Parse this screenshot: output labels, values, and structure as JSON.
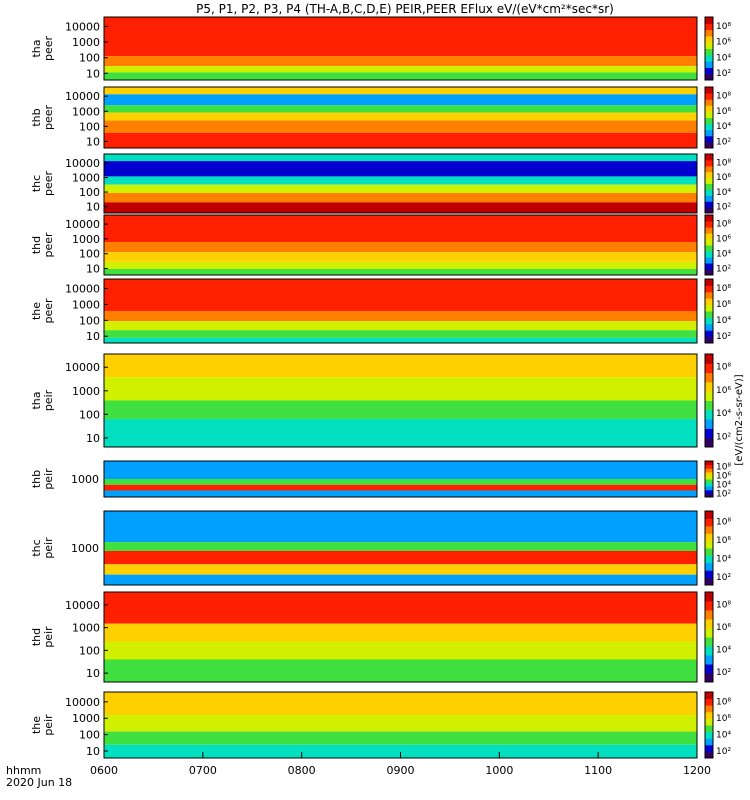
{
  "chart_data": {
    "type": "heatmap",
    "title": "P5, P1, P2, P3, P4 (TH-A,B,C,D,E) PEIR,PEER EFlux eV/(eV*cm²*sec*sr)",
    "xlabel_time": "hhmm",
    "xlabel_date": "2020 Jun 18",
    "x_ticks": [
      "0600",
      "0700",
      "0800",
      "0900",
      "1000",
      "1100",
      "1200"
    ],
    "x_range": [
      "0600",
      "1200"
    ],
    "y_scale": "log",
    "colorbar_scale": "log",
    "colorbar_label": "[eV/(cm2-s-sr-eV)]",
    "colorbar_ticks": [
      "10²",
      "10⁴",
      "10⁶",
      "10⁸"
    ],
    "colormap": [
      "#300060",
      "#0000d0",
      "#00a0ff",
      "#00e0c0",
      "#40e040",
      "#d0f000",
      "#ffd000",
      "#ff8000",
      "#ff2000",
      "#c00000"
    ],
    "panels": [
      {
        "probe": "tha",
        "species": "peer",
        "y_ticks": [
          "10",
          "100",
          "1000",
          "10000"
        ]
      },
      {
        "probe": "thb",
        "species": "peer",
        "y_ticks": [
          "10",
          "100",
          "1000",
          "10000"
        ]
      },
      {
        "probe": "thc",
        "species": "peer",
        "y_ticks": [
          "10",
          "100",
          "1000",
          "10000"
        ]
      },
      {
        "probe": "thd",
        "species": "peer",
        "y_ticks": [
          "10",
          "100",
          "1000",
          "10000"
        ]
      },
      {
        "probe": "the",
        "species": "peer",
        "y_ticks": [
          "10",
          "100",
          "1000",
          "10000"
        ]
      },
      {
        "probe": "tha",
        "species": "peir",
        "y_ticks": [
          "10",
          "100",
          "1000",
          "10000"
        ]
      },
      {
        "probe": "thb",
        "species": "peir",
        "y_ticks": [
          "1000"
        ]
      },
      {
        "probe": "thc",
        "species": "peir",
        "y_ticks": [
          "1000"
        ]
      },
      {
        "probe": "thd",
        "species": "peir",
        "y_ticks": [
          "10",
          "100",
          "1000",
          "10000"
        ]
      },
      {
        "probe": "the",
        "species": "peir",
        "y_ticks": [
          "10",
          "100",
          "1000",
          "10000"
        ]
      }
    ]
  }
}
